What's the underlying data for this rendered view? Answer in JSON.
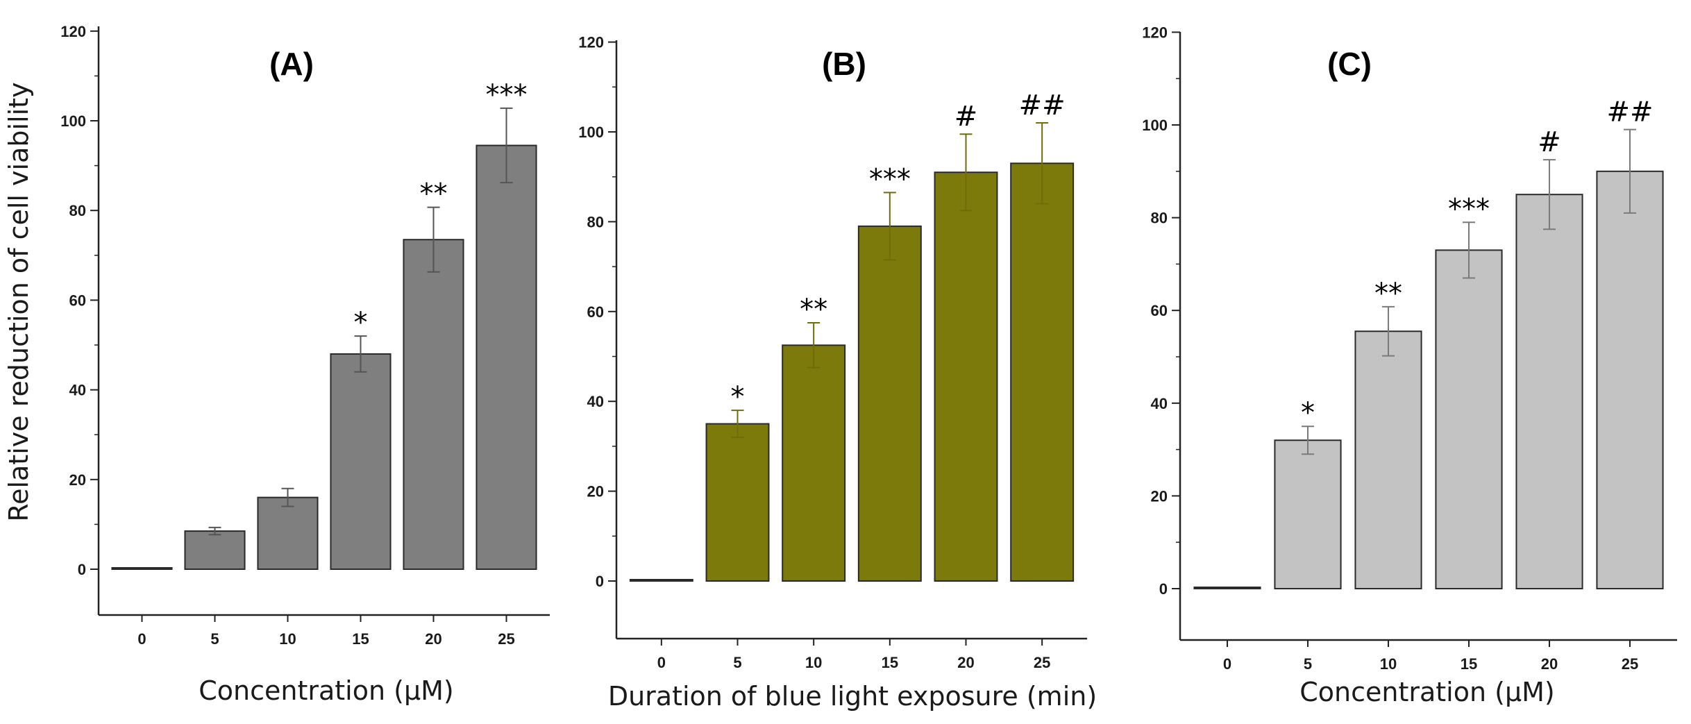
{
  "figure": {
    "ylabel": "Relative reduction of cell viability"
  },
  "chart_data": [
    {
      "type": "bar",
      "title": "(A)",
      "xlabel": "Concentration (μM)",
      "ylabel": "Relative reduction of cell viability",
      "categories": [
        "0",
        "5",
        "10",
        "15",
        "20",
        "25"
      ],
      "values": [
        0,
        8.5,
        16,
        48,
        73.5,
        94.5
      ],
      "errors": [
        0,
        0.8,
        2,
        4,
        7.2,
        8.3
      ],
      "significance": [
        "",
        "",
        "",
        "*",
        "**",
        "***"
      ],
      "ylim": [
        -10,
        120
      ],
      "yticks": [
        0,
        20,
        40,
        60,
        80,
        100,
        120
      ],
      "bar_color": "#7f7f7f",
      "grid": false
    },
    {
      "type": "bar",
      "title": "(B)",
      "xlabel": "Duration of blue light exposure (min)",
      "ylabel": "",
      "categories": [
        "0",
        "5",
        "10",
        "15",
        "20",
        "25"
      ],
      "values": [
        0,
        35,
        52.5,
        79,
        91,
        93
      ],
      "errors": [
        0,
        3,
        5,
        7.5,
        8.5,
        9
      ],
      "significance": [
        "",
        "*",
        "**",
        "***",
        "#",
        "##"
      ],
      "ylim": [
        -10,
        120
      ],
      "yticks": [
        0,
        20,
        40,
        60,
        80,
        100,
        120
      ],
      "bar_color": "#7c7a0b",
      "grid": false
    },
    {
      "type": "bar",
      "title": "(C)",
      "xlabel": "Concentration (μM)",
      "ylabel": "",
      "categories": [
        "0",
        "5",
        "10",
        "15",
        "20",
        "25"
      ],
      "values": [
        0,
        32,
        55.5,
        73,
        85,
        90
      ],
      "errors": [
        0,
        3,
        5.3,
        6,
        7.5,
        9
      ],
      "significance": [
        "",
        "*",
        "**",
        "***",
        "#",
        "##"
      ],
      "ylim": [
        -10,
        120
      ],
      "yticks": [
        0,
        20,
        40,
        60,
        80,
        100,
        120
      ],
      "bar_color": "#c3c3c3",
      "grid": false
    }
  ]
}
